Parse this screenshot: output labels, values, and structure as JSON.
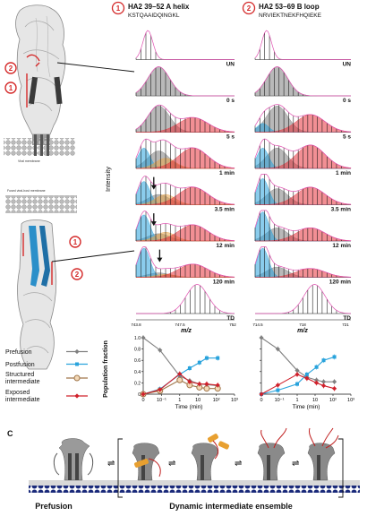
{
  "panel_b": {
    "peptides": [
      {
        "number": "1",
        "title": "HA2 39–52 A helix",
        "sequence": "KSTQAAIDQINGKL"
      },
      {
        "number": "2",
        "title": "HA2 53–69 B loop",
        "sequence": "NRVIEKTNEKFHQIEKE"
      }
    ],
    "row_labels": [
      "UN",
      "0 s",
      "5 s",
      "1 min",
      "3.5 min",
      "12 min",
      "120 min",
      "TD"
    ],
    "y_axis_label": "Intensity",
    "x_axis_label": "m/z",
    "mz_ticks": [
      [
        "743.8",
        "747.5",
        "752"
      ],
      [
        "714.5",
        "718",
        "721"
      ]
    ],
    "colors": {
      "postfusion": "#29a3dc",
      "structured": "#e8a64a",
      "exposed": "#e8333d",
      "prefusion": "#808080",
      "envelope": "#e050b0"
    }
  },
  "structure_labels": {
    "markers": [
      "1",
      "2"
    ],
    "viral_membrane": "Viral membrane",
    "fused_membrane": "Fused viral-host membrane"
  },
  "chart_data": [
    {
      "type": "line",
      "ylabel": "Population fraction",
      "xlabel": "Time (min)",
      "ylim": [
        0,
        1.0
      ],
      "x_scale": "log",
      "x_ticks": [
        "0",
        "10⁻¹",
        "1",
        "10",
        "10²",
        "10³"
      ],
      "y_ticks": [
        "0",
        "0.2",
        "0.4",
        "0.6",
        "0.8",
        "1.0"
      ],
      "x": [
        0,
        0.083,
        1,
        3.5,
        12,
        30,
        120
      ],
      "series": [
        {
          "name": "Prefusion",
          "values": [
            1.0,
            0.78,
            0.32,
            0.24,
            0.18,
            0.17,
            0.15
          ]
        },
        {
          "name": "Postfusion",
          "values": [
            0.0,
            0.09,
            0.35,
            0.46,
            0.56,
            0.64,
            0.64
          ]
        },
        {
          "name": "Structured intermediate",
          "values": [
            0.0,
            0.06,
            0.25,
            0.16,
            0.12,
            0.1,
            0.1
          ]
        },
        {
          "name": "Exposed intermediate",
          "values": [
            0.0,
            0.08,
            0.36,
            0.22,
            0.18,
            0.18,
            0.16
          ]
        }
      ]
    },
    {
      "type": "line",
      "ylabel": "",
      "xlabel": "Time (min)",
      "ylim": [
        0,
        1.0
      ],
      "x_scale": "log",
      "x_ticks": [
        "0",
        "10⁻¹",
        "1",
        "10",
        "10²",
        "10³"
      ],
      "y_ticks": [
        "0",
        "0.2",
        "0.4",
        "0.6",
        "0.8",
        "1.0"
      ],
      "x": [
        0,
        0.083,
        1,
        3.5,
        12,
        30,
        120
      ],
      "series": [
        {
          "name": "Prefusion",
          "values": [
            1.0,
            0.8,
            0.42,
            0.3,
            0.25,
            0.22,
            0.22
          ]
        },
        {
          "name": "Postfusion",
          "values": [
            0.0,
            0.07,
            0.18,
            0.35,
            0.48,
            0.6,
            0.66
          ]
        },
        {
          "name": "Exposed intermediate",
          "values": [
            0.0,
            0.16,
            0.35,
            0.28,
            0.2,
            0.15,
            0.1
          ]
        }
      ]
    }
  ],
  "legend": {
    "items": [
      {
        "label": "Prefusion",
        "color": "#808080",
        "marker": "diamond"
      },
      {
        "label": "Postfusion",
        "color": "#29a3dc",
        "marker": "square"
      },
      {
        "label": "Structured intermediate",
        "color": "#a0764a",
        "marker": "circle"
      },
      {
        "label": "Exposed intermediate",
        "color": "#d0202b",
        "marker": "diamond"
      }
    ]
  },
  "panel_c": {
    "letter": "C",
    "prefusion_label": "Prefusion",
    "ensemble_label": "Dynamic intermediate ensemble"
  }
}
